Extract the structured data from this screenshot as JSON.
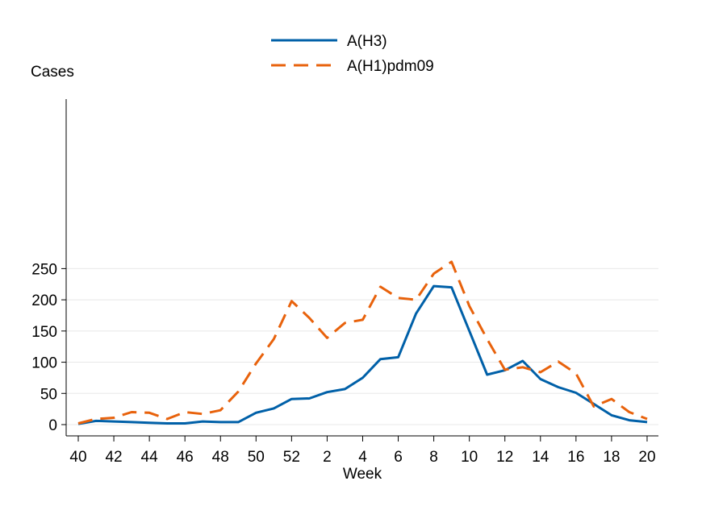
{
  "chart_data": {
    "type": "line",
    "title": "",
    "xlabel": "Week",
    "ylabel": "Cases",
    "ylim": [
      0,
      270
    ],
    "yticks": [
      0,
      50,
      100,
      150,
      200,
      250
    ],
    "grid": true,
    "legend_position": "top-center",
    "x_tick_labels": [
      "40",
      "42",
      "44",
      "46",
      "48",
      "50",
      "52",
      "2",
      "4",
      "6",
      "8",
      "10",
      "12",
      "14",
      "16",
      "18",
      "20"
    ],
    "weeks": [
      "40",
      "41",
      "42",
      "43",
      "44",
      "45",
      "46",
      "47",
      "48",
      "49",
      "50",
      "51",
      "52",
      "1",
      "2",
      "3",
      "4",
      "5",
      "6",
      "7",
      "8",
      "9",
      "10",
      "11",
      "12",
      "13",
      "14",
      "15",
      "16",
      "17",
      "18",
      "19",
      "20"
    ],
    "series": [
      {
        "name": "A(H3)",
        "color": "#0060a8",
        "style": "solid",
        "values": [
          1,
          6,
          5,
          4,
          3,
          2,
          2,
          5,
          4,
          4,
          19,
          26,
          41,
          42,
          52,
          57,
          75,
          105,
          108,
          178,
          222,
          220,
          150,
          80,
          87,
          102,
          73,
          60,
          51,
          33,
          15,
          7,
          4
        ]
      },
      {
        "name": "A(H1)pdm09",
        "color": "#e8620c",
        "style": "dashed",
        "values": [
          2,
          9,
          11,
          20,
          19,
          9,
          20,
          17,
          23,
          53,
          98,
          137,
          198,
          171,
          139,
          163,
          168,
          221,
          203,
          200,
          242,
          261,
          190,
          137,
          88,
          92,
          84,
          101,
          82,
          29,
          41,
          20,
          9
        ]
      }
    ]
  }
}
